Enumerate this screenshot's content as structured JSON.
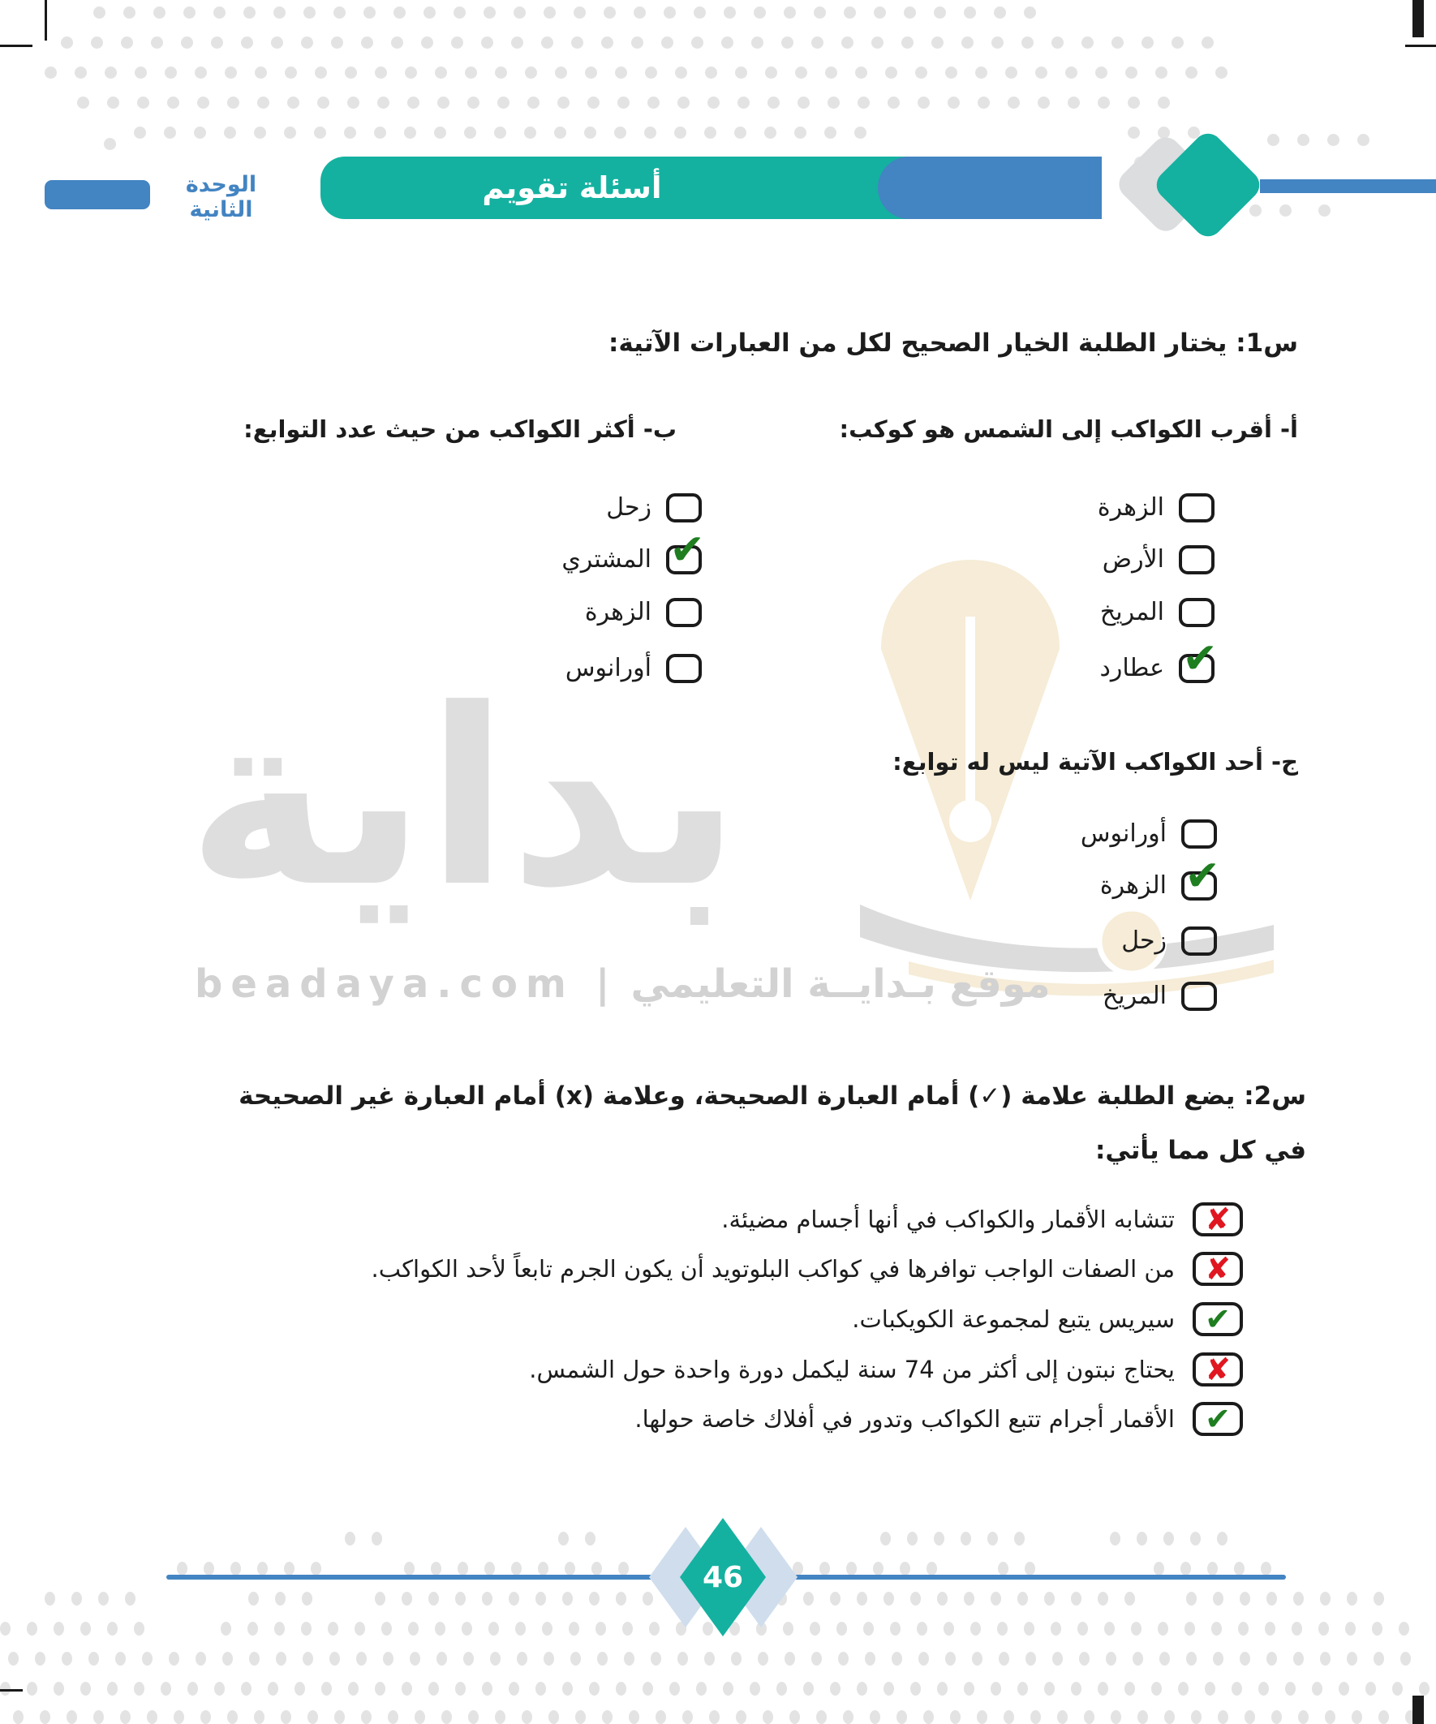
{
  "header": {
    "unit_label": "الوحدة الثانية",
    "banner_title": "أسئلة تقويم"
  },
  "q1": {
    "title": "س1: يختار الطلبة الخيار الصحيح لكل من العبارات الآتية:",
    "part_a": {
      "header": "أ- أقرب الكواكب إلى الشمس هو كوكب:",
      "options": [
        {
          "label": "الزهرة",
          "checked": false
        },
        {
          "label": "الأرض",
          "checked": false
        },
        {
          "label": "المريخ",
          "checked": false
        },
        {
          "label": "عطارد",
          "checked": true
        }
      ]
    },
    "part_b": {
      "header": "ب- أكثر الكواكب من حيث عدد التوابع:",
      "options": [
        {
          "label": "زحل",
          "checked": false
        },
        {
          "label": "المشتري",
          "checked": true
        },
        {
          "label": "الزهرة",
          "checked": false
        },
        {
          "label": "أورانوس",
          "checked": false
        }
      ]
    },
    "part_c": {
      "header": "ج- أحد الكواكب الآتية ليس له توابع:",
      "options": [
        {
          "label": "أورانوس",
          "checked": false
        },
        {
          "label": "الزهرة",
          "checked": true
        },
        {
          "label": "زحل",
          "checked": false
        },
        {
          "label": "المريخ",
          "checked": false
        }
      ]
    }
  },
  "q2": {
    "title_line1": "س2: يضع الطلبة علامة (✓) أمام العبارة الصحيحة، وعلامة (x) أمام العبارة غير الصحيحة",
    "title_line2": "في كل مما يأتي:",
    "statements": [
      {
        "text": "تتشابه الأقمار والكواكب في أنها أجسام مضيئة.",
        "mark": "wrong"
      },
      {
        "text": "من الصفات الواجب توافرها في كواكب البلوتويد أن يكون الجرم تابعاً لأحد الكواكب.",
        "mark": "wrong"
      },
      {
        "text": "سيريس يتبع لمجموعة الكويكبات.",
        "mark": "correct"
      },
      {
        "text": "يحتاج نبتون إلى أكثر من 74 سنة ليكمل دورة واحدة حول الشمس.",
        "mark": "wrong"
      },
      {
        "text": "الأقمار أجرام تتبع الكواكب وتدور في أفلاك خاصة حولها.",
        "mark": "correct"
      }
    ]
  },
  "footer": {
    "page_number": "46"
  },
  "watermark": {
    "brand_word": "بداية",
    "site_ar": "موقع بـدايــة التعليمي",
    "separator": "|",
    "site_en": "beadaya.com"
  },
  "glyphs": {
    "check": "✔",
    "cross": "✘"
  },
  "colors": {
    "teal": "#14b1a0",
    "blue": "#4384c2",
    "check_green": "#1e7e20",
    "cross_red": "#e01620"
  }
}
